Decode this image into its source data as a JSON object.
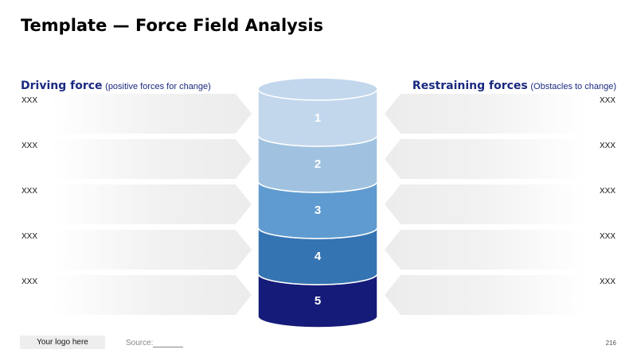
{
  "title": "Template — Force Field Analysis",
  "left_header": {
    "label": "Driving force",
    "sub": "(positive forces for change)"
  },
  "right_header": {
    "label": "Restraining forces",
    "sub": "(Obstacles to change)"
  },
  "left_items": [
    "XXX",
    "XXX",
    "XXX",
    "XXX",
    "XXX"
  ],
  "right_items": [
    "XXX",
    "XXX",
    "XXX",
    "XXX",
    "XXX"
  ],
  "layers": [
    {
      "label": "1",
      "color": "#c2d7ec"
    },
    {
      "label": "2",
      "color": "#a0c2e0"
    },
    {
      "label": "3",
      "color": "#5f9bd0"
    },
    {
      "label": "4",
      "color": "#3574b2"
    },
    {
      "label": "5",
      "color": "#151b78"
    }
  ],
  "footer": {
    "logo": "Your logo here",
    "source": "Source:",
    "page": "216"
  }
}
